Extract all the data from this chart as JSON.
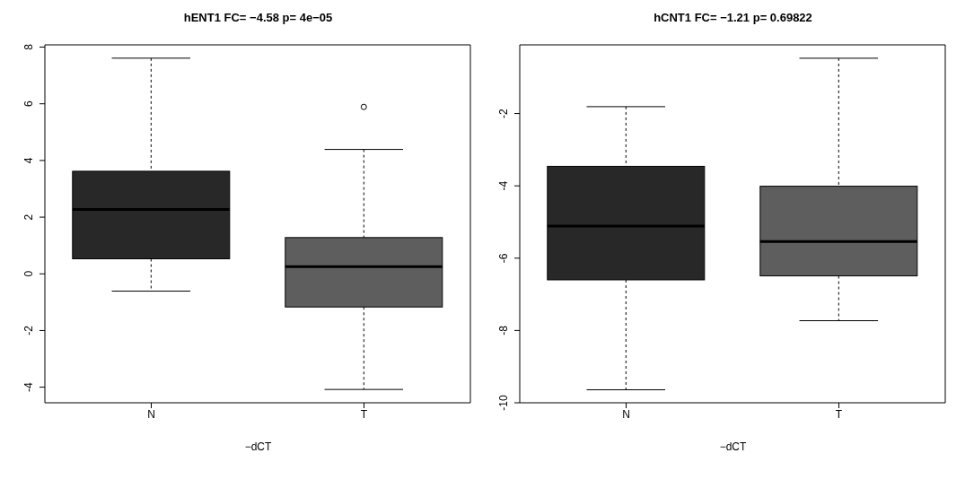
{
  "chart_data": [
    {
      "type": "box",
      "title": "hENT1 FC= −4.58 p= 4e−05",
      "xlabel": "−dCT",
      "categories": [
        "N",
        "T"
      ],
      "colors": [
        "#282828",
        "#5e5e5e"
      ],
      "boxes": [
        {
          "low": -0.61,
          "q1": 0.53,
          "median": 2.27,
          "q3": 3.62,
          "high": 7.61
        },
        {
          "low": -4.08,
          "q1": -1.17,
          "median": 0.25,
          "q3": 1.28,
          "high": 4.39,
          "outliers": [
            5.89
          ]
        }
      ],
      "ylim": [
        -4.55,
        8.08
      ],
      "yticks": [
        -4,
        -2,
        0,
        2,
        4,
        6,
        8
      ]
    },
    {
      "type": "box",
      "title": "hCNT1 FC= −1.21 p= 0.69822",
      "xlabel": "−dCT",
      "categories": [
        "N",
        "T"
      ],
      "colors": [
        "#282828",
        "#5e5e5e"
      ],
      "boxes": [
        {
          "low": -9.64,
          "q1": -6.6,
          "median": -5.11,
          "q3": -3.46,
          "high": -1.81
        },
        {
          "low": -7.73,
          "q1": -6.49,
          "median": -5.54,
          "q3": -4.01,
          "high": -0.47
        }
      ],
      "ylim": [
        -10.0,
        -0.1
      ],
      "yticks": [
        -10,
        -8,
        -6,
        -4,
        -2
      ]
    }
  ]
}
